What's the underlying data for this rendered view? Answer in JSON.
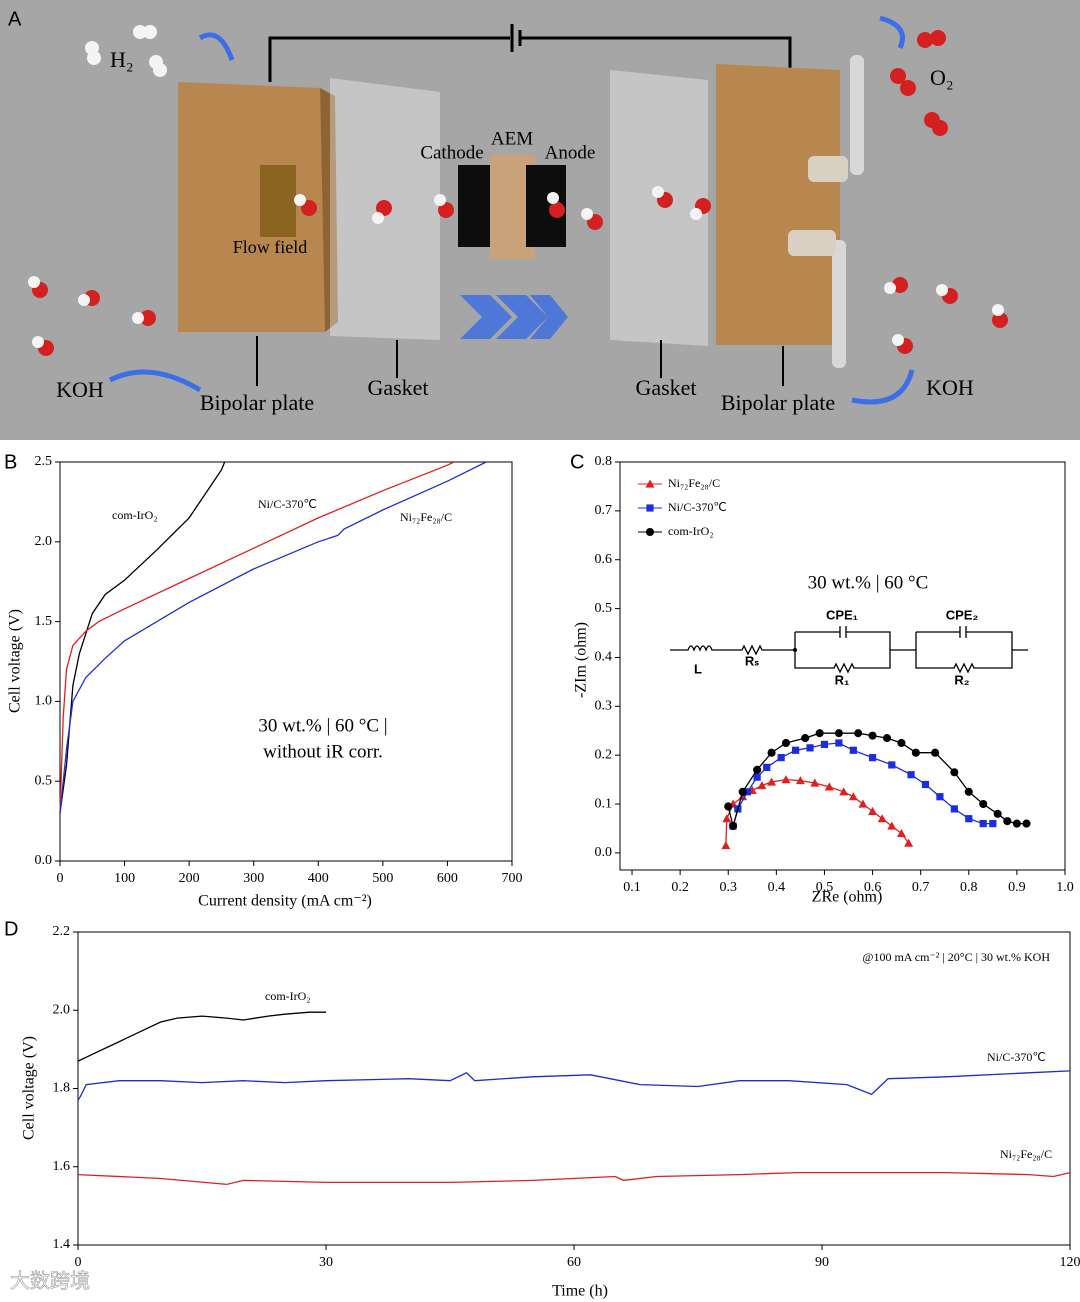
{
  "panel_labels": [
    "A",
    "B",
    "C",
    "D"
  ],
  "panel_a": {
    "h2": "H₂",
    "o2": "O₂",
    "cathode": "Cathode",
    "aem": "AEM",
    "anode": "Anode",
    "flow_field": "Flow field",
    "koh_left": "KOH",
    "koh_right": "KOH",
    "bipolar_left": "Bipolar plate",
    "bipolar_right": "Bipolar plate",
    "gasket_left": "Gasket",
    "gasket_right": "Gasket"
  },
  "watermark": "大数跨境",
  "chart_data": [
    {
      "type": "line",
      "x_label": "Current density (mA cm⁻²)",
      "y_label": "Cell voltage (V)",
      "xlim": [
        0,
        700
      ],
      "ylim": [
        0,
        2.5
      ],
      "xticks": [
        0,
        100,
        200,
        300,
        400,
        500,
        600,
        700
      ],
      "yticks": [
        {
          "value": 0,
          "label": "0.0"
        },
        0.5,
        {
          "value": 1,
          "label": "1.0"
        },
        1.5,
        {
          "value": 2,
          "label": "2.0"
        },
        2.5
      ],
      "annotations": [
        "30 wt.% | 60 °C |",
        "without iR corr."
      ],
      "series": [
        {
          "name": "com-IrO₂",
          "color": "#000000",
          "x": [
            0,
            10,
            20,
            30,
            50,
            70,
            100,
            150,
            200,
            250,
            255
          ],
          "values": [
            0.3,
            0.6,
            1.1,
            1.3,
            1.55,
            1.67,
            1.76,
            1.95,
            2.15,
            2.45,
            2.5
          ]
        },
        {
          "name": "Ni/C-370℃",
          "color": "#e02020",
          "x": [
            0,
            5,
            10,
            20,
            40,
            60,
            100,
            200,
            300,
            400,
            500,
            600,
            610
          ],
          "values": [
            0.3,
            0.9,
            1.2,
            1.35,
            1.44,
            1.5,
            1.58,
            1.77,
            1.96,
            2.15,
            2.32,
            2.48,
            2.5
          ]
        },
        {
          "name": "Ni₇₂Fe₂₈/C",
          "color": "#2030d0",
          "x": [
            0,
            10,
            20,
            40,
            70,
            100,
            200,
            300,
            400,
            430,
            440,
            500,
            600,
            660
          ],
          "values": [
            0.3,
            0.7,
            1.0,
            1.15,
            1.27,
            1.38,
            1.62,
            1.83,
            2.0,
            2.04,
            2.08,
            2.2,
            2.38,
            2.5
          ]
        }
      ]
    },
    {
      "type": "scatter",
      "x_label": "ZRe (ohm)",
      "y_label": "-ZIm (ohm)",
      "xlim": [
        0.075,
        1.0
      ],
      "ylim": [
        -0.035,
        0.8
      ],
      "xticks": [
        0.1,
        0.2,
        0.3,
        0.4,
        0.5,
        0.6,
        0.7,
        0.8,
        0.9,
        {
          "value": 1,
          "label": "1.0"
        }
      ],
      "yticks": [
        {
          "value": 0,
          "label": "0.0"
        },
        0.1,
        0.2,
        0.3,
        0.4,
        0.5,
        0.6,
        0.7,
        0.8
      ],
      "annotations": [
        "30 wt.% | 60 °C"
      ],
      "circuit_labels": [
        "L",
        "Rₛ",
        "CPE₁",
        "CPE₂",
        "R₁",
        "R₂"
      ],
      "legend": "upper left",
      "series": [
        {
          "name": "Ni₇₂Fe₂₈/C",
          "color": "#e02020",
          "marker": "triangle",
          "x": [
            0.295,
            0.297,
            0.31,
            0.33,
            0.35,
            0.37,
            0.39,
            0.42,
            0.45,
            0.48,
            0.51,
            0.54,
            0.56,
            0.58,
            0.6,
            0.62,
            0.64,
            0.66,
            0.675
          ],
          "values": [
            0.015,
            0.07,
            0.1,
            0.115,
            0.128,
            0.138,
            0.145,
            0.15,
            0.148,
            0.143,
            0.135,
            0.125,
            0.115,
            0.1,
            0.085,
            0.07,
            0.055,
            0.04,
            0.02
          ]
        },
        {
          "name": "Ni/C-370℃",
          "color": "#1a2ee0",
          "marker": "square",
          "x": [
            0.31,
            0.32,
            0.34,
            0.36,
            0.38,
            0.41,
            0.44,
            0.47,
            0.5,
            0.53,
            0.56,
            0.6,
            0.64,
            0.68,
            0.71,
            0.74,
            0.77,
            0.8,
            0.83,
            0.85
          ],
          "values": [
            0.055,
            0.09,
            0.125,
            0.155,
            0.175,
            0.195,
            0.21,
            0.215,
            0.222,
            0.225,
            0.21,
            0.195,
            0.18,
            0.16,
            0.14,
            0.115,
            0.09,
            0.07,
            0.06,
            0.06
          ]
        },
        {
          "name": "com-IrO₂",
          "color": "#000000",
          "marker": "circle",
          "x": [
            0.3,
            0.31,
            0.33,
            0.36,
            0.39,
            0.42,
            0.46,
            0.49,
            0.53,
            0.57,
            0.6,
            0.63,
            0.66,
            0.69,
            0.73,
            0.77,
            0.8,
            0.83,
            0.86,
            0.88,
            0.9,
            0.92
          ],
          "values": [
            0.095,
            0.055,
            0.125,
            0.17,
            0.205,
            0.225,
            0.235,
            0.245,
            0.245,
            0.245,
            0.24,
            0.235,
            0.225,
            0.205,
            0.205,
            0.165,
            0.125,
            0.1,
            0.08,
            0.065,
            0.06,
            0.06
          ]
        }
      ]
    },
    {
      "type": "line",
      "x_label": "Time (h)",
      "y_label": "Cell voltage (V)",
      "xlim": [
        0,
        120
      ],
      "ylim": [
        1.4,
        2.2
      ],
      "xticks": [
        0,
        30,
        60,
        90,
        120
      ],
      "yticks": [
        1.4,
        1.6,
        1.8,
        {
          "value": 2,
          "label": "2.0"
        },
        2.2
      ],
      "annotations": [
        "@100 mA cm⁻² | 20°C | 30 wt.% KOH"
      ],
      "series": [
        {
          "name": "com-IrO₂",
          "color": "#000000",
          "x": [
            0,
            2,
            5,
            8,
            10,
            12,
            15,
            18,
            20,
            23,
            25,
            28,
            30
          ],
          "values": [
            1.87,
            1.89,
            1.92,
            1.95,
            1.97,
            1.98,
            1.985,
            1.98,
            1.975,
            1.985,
            1.99,
            1.995,
            1.995
          ]
        },
        {
          "name": "Ni/C-370℃",
          "color": "#1a2ec8",
          "x": [
            0,
            0.3,
            1,
            5,
            10,
            15,
            20,
            25,
            30,
            40,
            45,
            47,
            48,
            55,
            62,
            68,
            75,
            80,
            86,
            93,
            96,
            98,
            105,
            115,
            120
          ],
          "values": [
            1.77,
            1.78,
            1.81,
            1.82,
            1.82,
            1.815,
            1.82,
            1.815,
            1.82,
            1.825,
            1.82,
            1.84,
            1.82,
            1.83,
            1.835,
            1.81,
            1.805,
            1.82,
            1.82,
            1.81,
            1.785,
            1.825,
            1.83,
            1.84,
            1.845
          ]
        },
        {
          "name": "Ni₇₂Fe₂₈/C",
          "color": "#e02020",
          "x": [
            0,
            10,
            18,
            20,
            30,
            45,
            55,
            65,
            66,
            70,
            80,
            87,
            95,
            105,
            115,
            118,
            120
          ],
          "values": [
            1.58,
            1.57,
            1.555,
            1.565,
            1.56,
            1.56,
            1.565,
            1.575,
            1.565,
            1.575,
            1.58,
            1.585,
            1.585,
            1.585,
            1.58,
            1.575,
            1.585
          ]
        }
      ]
    }
  ]
}
